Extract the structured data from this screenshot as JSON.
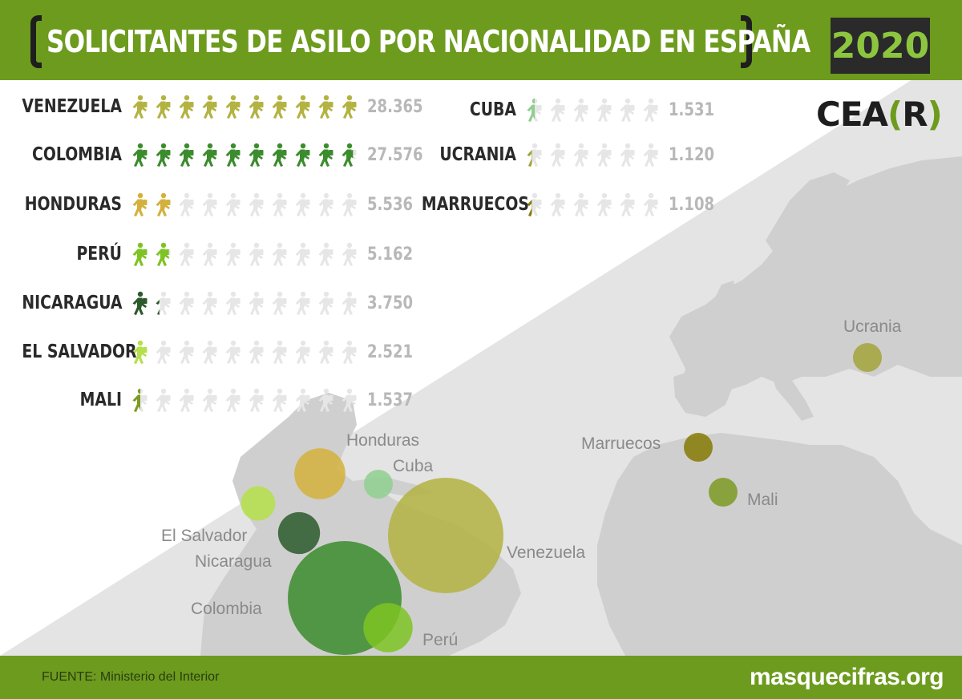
{
  "header": {
    "title": "SOLICITANTES DE ASILO POR NACIONALIDAD EN ESPAÑA",
    "year": "2020"
  },
  "logo": {
    "text_a": "CEA",
    "text_b": "R"
  },
  "footer": {
    "source": "FUENTE: Ministerio del Interior",
    "site": "masquecifras.org"
  },
  "colors": {
    "header_green": "#6d9b1e",
    "icon_empty": "#e6e6e6",
    "map_grey": "#cfcfcf"
  },
  "icon_name": "walking-person-icon",
  "chart_data": {
    "type": "pictogram",
    "title": "SOLICITANTES DE ASILO POR NACIONALIDAD EN ESPAÑA",
    "icons_per_row": 10,
    "icon_unit": 2836.5,
    "series": [
      {
        "country": "VENEZUELA",
        "value": 28365,
        "label": "28.365",
        "map_label": "Venezuela",
        "color": "#b3b342"
      },
      {
        "country": "COLOMBIA",
        "value": 27576,
        "label": "27.576",
        "map_label": "Colombia",
        "color": "#3b8c2c"
      },
      {
        "country": "HONDURAS",
        "value": 5536,
        "label": "5.536",
        "map_label": "Honduras",
        "color": "#d4b13c"
      },
      {
        "country": "PERÚ",
        "value": 5162,
        "label": "5.162",
        "map_label": "Perú",
        "color": "#7dc423"
      },
      {
        "country": "NICARAGUA",
        "value": 3750,
        "label": "3.750",
        "map_label": "Nicaragua",
        "color": "#2b5a2b"
      },
      {
        "country": "EL SALVADOR",
        "value": 2521,
        "label": "2.521",
        "map_label": "El Salvador",
        "color": "#b5e04a"
      },
      {
        "country": "MALI",
        "value": 1537,
        "label": "1.537",
        "map_label": "Mali",
        "color": "#7d9a23"
      },
      {
        "country": "CUBA",
        "value": 1531,
        "label": "1.531",
        "map_label": "Cuba",
        "color": "#8fcf8f"
      },
      {
        "country": "UCRANIA",
        "value": 1120,
        "label": "1.120",
        "map_label": "Ucrania",
        "color": "#a3a33a"
      },
      {
        "country": "MARRUECOS",
        "value": 1108,
        "label": "1.108",
        "map_label": "Marruecos",
        "color": "#857a05"
      }
    ]
  }
}
